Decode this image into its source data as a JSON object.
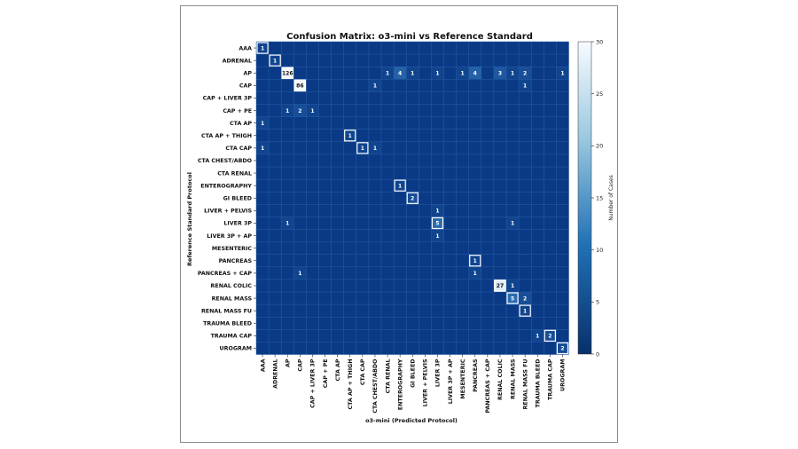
{
  "chart_data": {
    "type": "heatmap",
    "title": "Confusion Matrix: o3-mini vs Reference Standard",
    "xlabel": "o3-mini (Predicted Protocol)",
    "ylabel": "Reference Standard Protocol",
    "colorbar": {
      "label": "Number of Cases",
      "min": 0,
      "max": 30,
      "ticks": [
        0,
        5,
        10,
        15,
        20,
        25,
        30
      ]
    },
    "x_categories": [
      "AAA",
      "ADRENAL",
      "AP",
      "CAP",
      "CAP + LIVER 3P",
      "CAP + PE",
      "CTA AP",
      "CTA AP + THIGH",
      "CTA CAP",
      "CTA CHEST/ABDO",
      "CTA RENAL",
      "ENTEROGRAPHY",
      "GI BLEED",
      "LIVER + PELVIS",
      "LIVER 3P",
      "LIVER 3P + AP",
      "MESENTERIC",
      "PANCREAS",
      "PANCREAS + CAP",
      "RENAL COLIC",
      "RENAL MASS",
      "RENAL MASS FU",
      "TRAUMA BLEED",
      "TRAUMA CAP",
      "UROGRAM"
    ],
    "y_categories": [
      "AAA",
      "ADRENAL",
      "AP",
      "CAP",
      "CAP + LIVER 3P",
      "CAP + PE",
      "CTA AP",
      "CTA AP + THIGH",
      "CTA CAP",
      "CTA CHEST/ABDO",
      "CTA RENAL",
      "ENTEROGRAPHY",
      "GI BLEED",
      "LIVER + PELVIS",
      "LIVER 3P",
      "LIVER 3P + AP",
      "MESENTERIC",
      "PANCREAS",
      "PANCREAS + CAP",
      "RENAL COLIC",
      "RENAL MASS",
      "RENAL MASS FU",
      "TRAUMA BLEED",
      "TRAUMA CAP",
      "UROGRAM"
    ],
    "cells": [
      {
        "row": "AAA",
        "col": "AAA",
        "value": 1
      },
      {
        "row": "ADRENAL",
        "col": "ADRENAL",
        "value": 1
      },
      {
        "row": "AP",
        "col": "AP",
        "value": 126
      },
      {
        "row": "AP",
        "col": "CTA RENAL",
        "value": 1
      },
      {
        "row": "AP",
        "col": "ENTEROGRAPHY",
        "value": 4
      },
      {
        "row": "AP",
        "col": "GI BLEED",
        "value": 1
      },
      {
        "row": "AP",
        "col": "LIVER 3P",
        "value": 1
      },
      {
        "row": "AP",
        "col": "MESENTERIC",
        "value": 1
      },
      {
        "row": "AP",
        "col": "PANCREAS",
        "value": 4
      },
      {
        "row": "AP",
        "col": "RENAL COLIC",
        "value": 3
      },
      {
        "row": "AP",
        "col": "RENAL MASS",
        "value": 1
      },
      {
        "row": "AP",
        "col": "RENAL MASS FU",
        "value": 2
      },
      {
        "row": "AP",
        "col": "UROGRAM",
        "value": 1
      },
      {
        "row": "CAP",
        "col": "CAP",
        "value": 86
      },
      {
        "row": "CAP",
        "col": "CTA CHEST/ABDO",
        "value": 1
      },
      {
        "row": "CAP",
        "col": "RENAL MASS FU",
        "value": 1
      },
      {
        "row": "CAP + PE",
        "col": "AP",
        "value": 1
      },
      {
        "row": "CAP + PE",
        "col": "CAP",
        "value": 2
      },
      {
        "row": "CAP + PE",
        "col": "CAP + LIVER 3P",
        "value": 1
      },
      {
        "row": "CTA AP",
        "col": "AAA",
        "value": 1
      },
      {
        "row": "CTA AP + THIGH",
        "col": "CTA AP + THIGH",
        "value": 1
      },
      {
        "row": "CTA CAP",
        "col": "AAA",
        "value": 1
      },
      {
        "row": "CTA CAP",
        "col": "CTA CAP",
        "value": 1
      },
      {
        "row": "CTA CAP",
        "col": "CTA CHEST/ABDO",
        "value": 1
      },
      {
        "row": "ENTEROGRAPHY",
        "col": "ENTEROGRAPHY",
        "value": 1
      },
      {
        "row": "GI BLEED",
        "col": "GI BLEED",
        "value": 2
      },
      {
        "row": "LIVER + PELVIS",
        "col": "LIVER 3P",
        "value": 1
      },
      {
        "row": "LIVER 3P",
        "col": "AP",
        "value": 1
      },
      {
        "row": "LIVER 3P",
        "col": "LIVER 3P",
        "value": 5
      },
      {
        "row": "LIVER 3P",
        "col": "RENAL MASS",
        "value": 1
      },
      {
        "row": "LIVER 3P + AP",
        "col": "LIVER 3P",
        "value": 1
      },
      {
        "row": "PANCREAS",
        "col": "PANCREAS",
        "value": 1
      },
      {
        "row": "PANCREAS + CAP",
        "col": "PANCREAS",
        "value": 1
      },
      {
        "row": "PANCREAS + CAP",
        "col": "CAP",
        "value": 1
      },
      {
        "row": "RENAL COLIC",
        "col": "RENAL COLIC",
        "value": 27
      },
      {
        "row": "RENAL COLIC",
        "col": "RENAL MASS",
        "value": 1
      },
      {
        "row": "RENAL MASS",
        "col": "RENAL MASS",
        "value": 5
      },
      {
        "row": "RENAL MASS",
        "col": "RENAL MASS FU",
        "value": 2
      },
      {
        "row": "RENAL MASS FU",
        "col": "RENAL MASS FU",
        "value": 1
      },
      {
        "row": "TRAUMA CAP",
        "col": "TRAUMA BLEED",
        "value": 1
      },
      {
        "row": "TRAUMA CAP",
        "col": "TRAUMA CAP",
        "value": 2
      },
      {
        "row": "UROGRAM",
        "col": "UROGRAM",
        "value": 2
      }
    ],
    "colors": {
      "low": "#0a3a86",
      "mid": "#4d8fc8",
      "high": "#f4f9fd",
      "grid": "#2c5fa6",
      "diag_box": "#ffffff"
    }
  }
}
